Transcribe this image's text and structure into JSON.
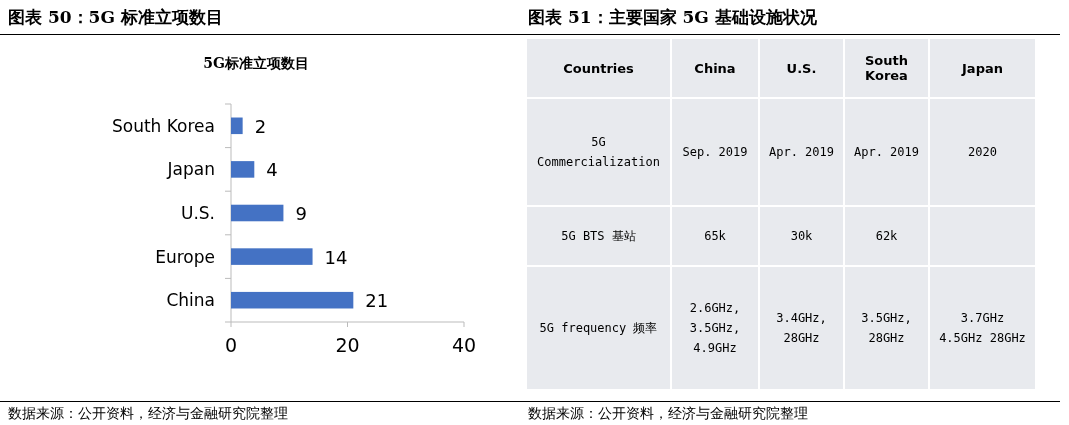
{
  "chart_data": [
    {
      "type": "bar",
      "orientation": "horizontal",
      "title": "图表 50：5G 标准立项数目",
      "subtitle": "5G标准立项数目",
      "categories": [
        "South Korea",
        "Japan",
        "U.S.",
        "Europe",
        "China"
      ],
      "values": [
        2,
        4,
        9,
        14,
        21
      ],
      "color": "#4472c4",
      "xlim": [
        0,
        40
      ],
      "xticks": [
        0,
        20,
        40
      ],
      "data_labels": true,
      "annotations": [
        "数据来源：公开资料，经济与金融研究院整理"
      ]
    },
    {
      "type": "other",
      "title": "图表 51：主要国家 5G 基础设施状况",
      "categories": [
        "Countries",
        "China",
        "U.S.",
        "South Korea",
        "Japan"
      ],
      "y_categories": [
        "5G Commercialization",
        "5G BTS 基站",
        "5G frequency 频率"
      ],
      "cell_labels": [
        [
          "Sep. 2019",
          "Apr. 2019",
          "Apr. 2019",
          "2020"
        ],
        [
          "65k",
          "30k",
          "62k",
          null
        ],
        [
          "2.6GHz, 3.5GHz, 4.9GHz",
          "3.4GHz, 28GHz",
          "3.5GHz, 28GHz",
          "3.7GHz 4.5GHz 28GHz"
        ]
      ],
      "annotations": [
        "数据来源：公开资料，经济与金融研究院整理"
      ]
    }
  ]
}
